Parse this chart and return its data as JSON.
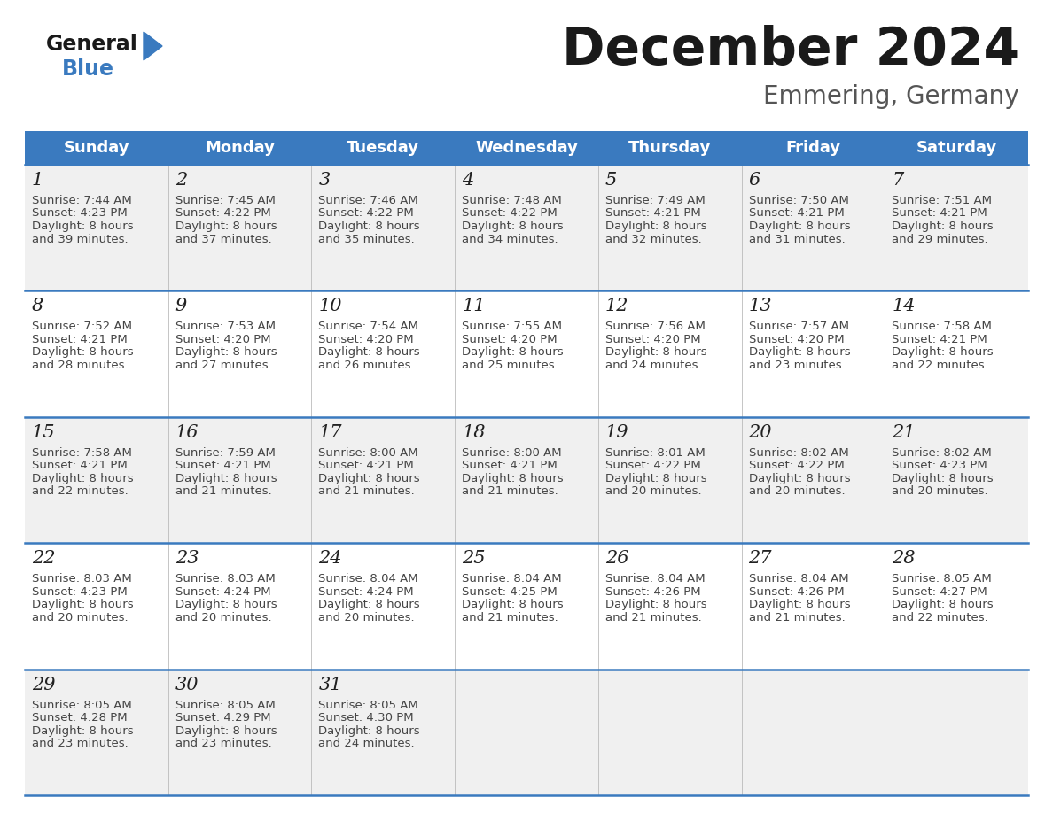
{
  "title": "December 2024",
  "subtitle": "Emmering, Germany",
  "header_color": "#3a7abf",
  "header_text_color": "#ffffff",
  "weekdays": [
    "Sunday",
    "Monday",
    "Tuesday",
    "Wednesday",
    "Thursday",
    "Friday",
    "Saturday"
  ],
  "row_bg_even": "#f0f0f0",
  "row_bg_odd": "#ffffff",
  "divider_color": "#3a7abf",
  "calendar": [
    [
      {
        "day": "1",
        "sunrise": "7:44 AM",
        "sunset": "4:23 PM",
        "dl1": "8 hours",
        "dl2": "and 39 minutes."
      },
      {
        "day": "2",
        "sunrise": "7:45 AM",
        "sunset": "4:22 PM",
        "dl1": "8 hours",
        "dl2": "and 37 minutes."
      },
      {
        "day": "3",
        "sunrise": "7:46 AM",
        "sunset": "4:22 PM",
        "dl1": "8 hours",
        "dl2": "and 35 minutes."
      },
      {
        "day": "4",
        "sunrise": "7:48 AM",
        "sunset": "4:22 PM",
        "dl1": "8 hours",
        "dl2": "and 34 minutes."
      },
      {
        "day": "5",
        "sunrise": "7:49 AM",
        "sunset": "4:21 PM",
        "dl1": "8 hours",
        "dl2": "and 32 minutes."
      },
      {
        "day": "6",
        "sunrise": "7:50 AM",
        "sunset": "4:21 PM",
        "dl1": "8 hours",
        "dl2": "and 31 minutes."
      },
      {
        "day": "7",
        "sunrise": "7:51 AM",
        "sunset": "4:21 PM",
        "dl1": "8 hours",
        "dl2": "and 29 minutes."
      }
    ],
    [
      {
        "day": "8",
        "sunrise": "7:52 AM",
        "sunset": "4:21 PM",
        "dl1": "8 hours",
        "dl2": "and 28 minutes."
      },
      {
        "day": "9",
        "sunrise": "7:53 AM",
        "sunset": "4:20 PM",
        "dl1": "8 hours",
        "dl2": "and 27 minutes."
      },
      {
        "day": "10",
        "sunrise": "7:54 AM",
        "sunset": "4:20 PM",
        "dl1": "8 hours",
        "dl2": "and 26 minutes."
      },
      {
        "day": "11",
        "sunrise": "7:55 AM",
        "sunset": "4:20 PM",
        "dl1": "8 hours",
        "dl2": "and 25 minutes."
      },
      {
        "day": "12",
        "sunrise": "7:56 AM",
        "sunset": "4:20 PM",
        "dl1": "8 hours",
        "dl2": "and 24 minutes."
      },
      {
        "day": "13",
        "sunrise": "7:57 AM",
        "sunset": "4:20 PM",
        "dl1": "8 hours",
        "dl2": "and 23 minutes."
      },
      {
        "day": "14",
        "sunrise": "7:58 AM",
        "sunset": "4:21 PM",
        "dl1": "8 hours",
        "dl2": "and 22 minutes."
      }
    ],
    [
      {
        "day": "15",
        "sunrise": "7:58 AM",
        "sunset": "4:21 PM",
        "dl1": "8 hours",
        "dl2": "and 22 minutes."
      },
      {
        "day": "16",
        "sunrise": "7:59 AM",
        "sunset": "4:21 PM",
        "dl1": "8 hours",
        "dl2": "and 21 minutes."
      },
      {
        "day": "17",
        "sunrise": "8:00 AM",
        "sunset": "4:21 PM",
        "dl1": "8 hours",
        "dl2": "and 21 minutes."
      },
      {
        "day": "18",
        "sunrise": "8:00 AM",
        "sunset": "4:21 PM",
        "dl1": "8 hours",
        "dl2": "and 21 minutes."
      },
      {
        "day": "19",
        "sunrise": "8:01 AM",
        "sunset": "4:22 PM",
        "dl1": "8 hours",
        "dl2": "and 20 minutes."
      },
      {
        "day": "20",
        "sunrise": "8:02 AM",
        "sunset": "4:22 PM",
        "dl1": "8 hours",
        "dl2": "and 20 minutes."
      },
      {
        "day": "21",
        "sunrise": "8:02 AM",
        "sunset": "4:23 PM",
        "dl1": "8 hours",
        "dl2": "and 20 minutes."
      }
    ],
    [
      {
        "day": "22",
        "sunrise": "8:03 AM",
        "sunset": "4:23 PM",
        "dl1": "8 hours",
        "dl2": "and 20 minutes."
      },
      {
        "day": "23",
        "sunrise": "8:03 AM",
        "sunset": "4:24 PM",
        "dl1": "8 hours",
        "dl2": "and 20 minutes."
      },
      {
        "day": "24",
        "sunrise": "8:04 AM",
        "sunset": "4:24 PM",
        "dl1": "8 hours",
        "dl2": "and 20 minutes."
      },
      {
        "day": "25",
        "sunrise": "8:04 AM",
        "sunset": "4:25 PM",
        "dl1": "8 hours",
        "dl2": "and 21 minutes."
      },
      {
        "day": "26",
        "sunrise": "8:04 AM",
        "sunset": "4:26 PM",
        "dl1": "8 hours",
        "dl2": "and 21 minutes."
      },
      {
        "day": "27",
        "sunrise": "8:04 AM",
        "sunset": "4:26 PM",
        "dl1": "8 hours",
        "dl2": "and 21 minutes."
      },
      {
        "day": "28",
        "sunrise": "8:05 AM",
        "sunset": "4:27 PM",
        "dl1": "8 hours",
        "dl2": "and 22 minutes."
      }
    ],
    [
      {
        "day": "29",
        "sunrise": "8:05 AM",
        "sunset": "4:28 PM",
        "dl1": "8 hours",
        "dl2": "and 23 minutes."
      },
      {
        "day": "30",
        "sunrise": "8:05 AM",
        "sunset": "4:29 PM",
        "dl1": "8 hours",
        "dl2": "and 23 minutes."
      },
      {
        "day": "31",
        "sunrise": "8:05 AM",
        "sunset": "4:30 PM",
        "dl1": "8 hours",
        "dl2": "and 24 minutes."
      },
      null,
      null,
      null,
      null
    ]
  ],
  "logo_general_color": "#1a1a1a",
  "logo_blue_color": "#3a7abf",
  "logo_triangle_color": "#3a7abf",
  "title_fontsize": 42,
  "subtitle_fontsize": 20,
  "header_fontsize": 13,
  "day_fontsize": 15,
  "info_fontsize": 9.5
}
